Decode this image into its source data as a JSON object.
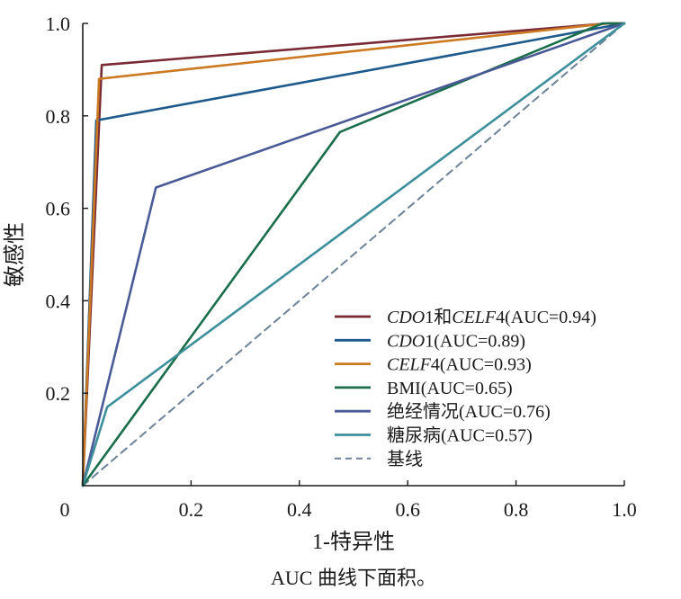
{
  "caption": "AUC 曲线下面积。",
  "chart_data": {
    "type": "line",
    "xlabel": "1-特异性",
    "ylabel": "敏感性",
    "xlim": [
      0,
      1.0
    ],
    "ylim": [
      0,
      1.0
    ],
    "x_ticks": [
      "0",
      "0.2",
      "0.4",
      "0.6",
      "0.8",
      "1.0"
    ],
    "y_ticks": [
      "0.2",
      "0.4",
      "0.6",
      "0.8",
      "1.0"
    ],
    "grid": false,
    "legend_position": "bottom-right",
    "series": [
      {
        "name": "CDO1和CELF4(AUC=0.94)",
        "legend_parts": [
          [
            "CDO",
            true
          ],
          [
            "1和",
            false
          ],
          [
            "CELF",
            true
          ],
          [
            "4(AUC=0.94)",
            false
          ]
        ],
        "color": "#7a2a35",
        "dashed": false,
        "x": [
          0,
          0.035,
          0.97,
          1.0
        ],
        "y": [
          0,
          0.91,
          1.0,
          1.0
        ]
      },
      {
        "name": "CDO1(AUC=0.89)",
        "legend_parts": [
          [
            "CDO",
            true
          ],
          [
            "1(AUC=0.89)",
            false
          ]
        ],
        "color": "#1e5a8c",
        "dashed": false,
        "x": [
          0,
          0.025,
          1.0
        ],
        "y": [
          0,
          0.79,
          1.0
        ]
      },
      {
        "name": "CELF4(AUC=0.93)",
        "legend_parts": [
          [
            "CELF",
            true
          ],
          [
            "4(AUC=0.93)",
            false
          ]
        ],
        "color": "#cc7a22",
        "dashed": false,
        "x": [
          0,
          0.03,
          0.97,
          1.0
        ],
        "y": [
          0,
          0.88,
          1.0,
          1.0
        ]
      },
      {
        "name": "BMI(AUC=0.65)",
        "legend_parts": [
          [
            "BMI(AUC=0.65)",
            false
          ]
        ],
        "color": "#1a6e4b",
        "dashed": false,
        "x": [
          0,
          0.475,
          0.96,
          1.0
        ],
        "y": [
          0,
          0.765,
          1.0,
          1.0
        ]
      },
      {
        "name": "绝经情况(AUC=0.76)",
        "legend_parts": [
          [
            "绝经情况(AUC=0.76)",
            false
          ]
        ],
        "color": "#4a5a96",
        "dashed": false,
        "x": [
          0,
          0.135,
          1.0
        ],
        "y": [
          0,
          0.645,
          1.0
        ]
      },
      {
        "name": "糖尿病(AUC=0.57)",
        "legend_parts": [
          [
            "糖尿病(AUC=0.57)",
            false
          ]
        ],
        "color": "#3d8f9c",
        "dashed": false,
        "x": [
          0,
          0.045,
          1.0
        ],
        "y": [
          0,
          0.17,
          1.0
        ]
      },
      {
        "name": "基线",
        "legend_parts": [
          [
            "基线",
            false
          ]
        ],
        "color": "#6b8299",
        "dashed": true,
        "x": [
          0,
          1.0
        ],
        "y": [
          0,
          1.0
        ]
      }
    ]
  }
}
